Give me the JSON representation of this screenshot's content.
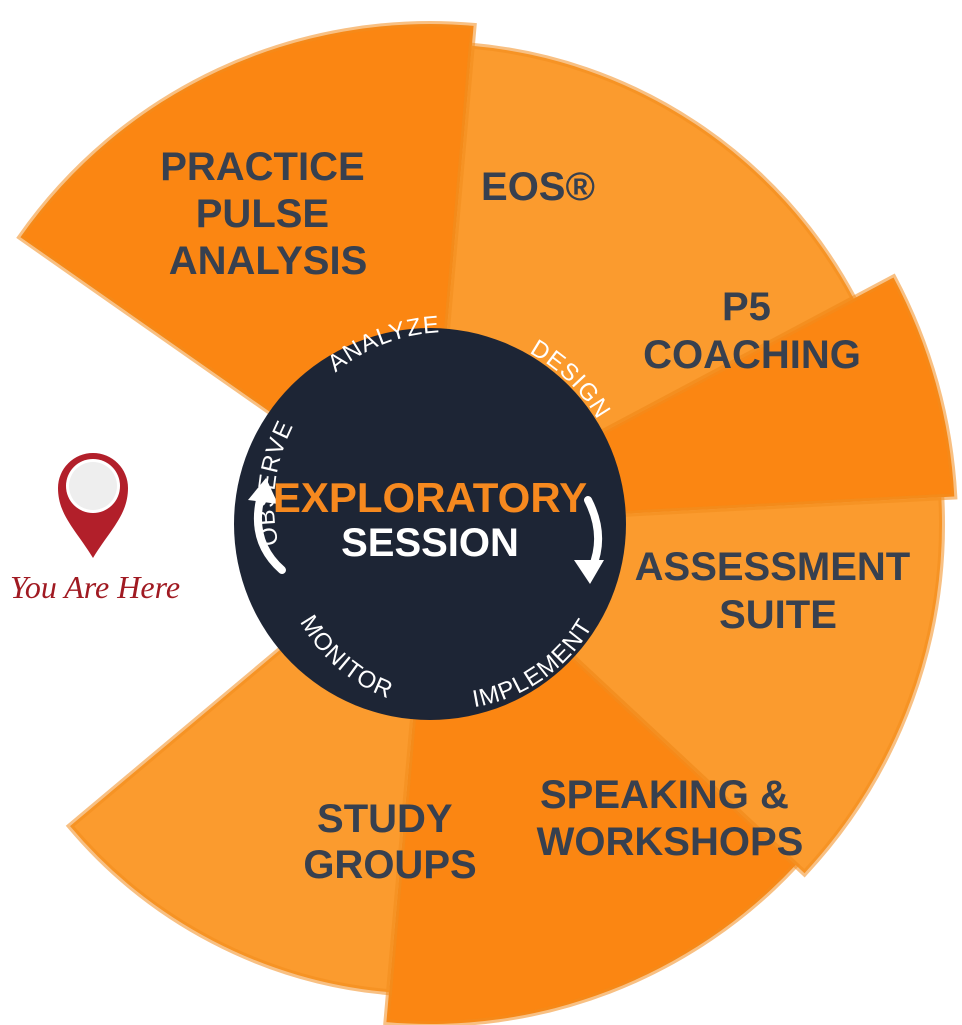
{
  "segments": [
    {
      "lines": [
        "PRACTICE",
        "PULSE",
        "ANALYSIS"
      ],
      "color": "#fb8612"
    },
    {
      "lines": [
        "EOS®"
      ],
      "color": "#fb9b2e"
    },
    {
      "lines": [
        "P5",
        "COACHING"
      ],
      "color": "#fb8612"
    },
    {
      "lines": [
        "ASSESSMENT",
        "SUITE"
      ],
      "color": "#fb9b2e"
    },
    {
      "lines": [
        "SPEAKING &",
        "WORKSHOPS"
      ],
      "color": "#fb8612"
    },
    {
      "lines": [
        "STUDY",
        "GROUPS"
      ],
      "color": "#fb9b2e"
    }
  ],
  "center": {
    "title_line1": "EXPLORATORY",
    "title_line2": "SESSION",
    "title_color": "#f6891f",
    "bg_color": "#1d2535"
  },
  "cycle_steps": [
    "OBSERVE",
    "ANALYZE",
    "DESIGN",
    "IMPLEMENT",
    "MONITOR"
  ],
  "marker": {
    "label": "You Are Here",
    "color": "#b21f2a"
  },
  "text_color": "#37404f"
}
